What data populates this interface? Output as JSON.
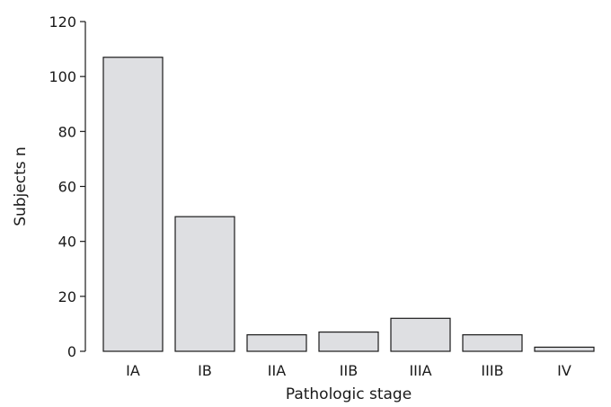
{
  "chart_data": {
    "type": "bar",
    "categories": [
      "IA",
      "IB",
      "IIA",
      "IIB",
      "IIIA",
      "IIIB",
      "IV"
    ],
    "values": [
      107,
      49,
      6,
      7,
      12,
      6,
      1.5
    ],
    "xlabel": "Pathologic stage",
    "ylabel": "Subjects n",
    "ylim": [
      0,
      120
    ],
    "yticks": [
      0,
      20,
      40,
      60,
      80,
      100,
      120
    ],
    "grid": false,
    "legend": "none",
    "bar_color": "#dedfe2",
    "bar_edge_color": "#1a1a1a"
  }
}
